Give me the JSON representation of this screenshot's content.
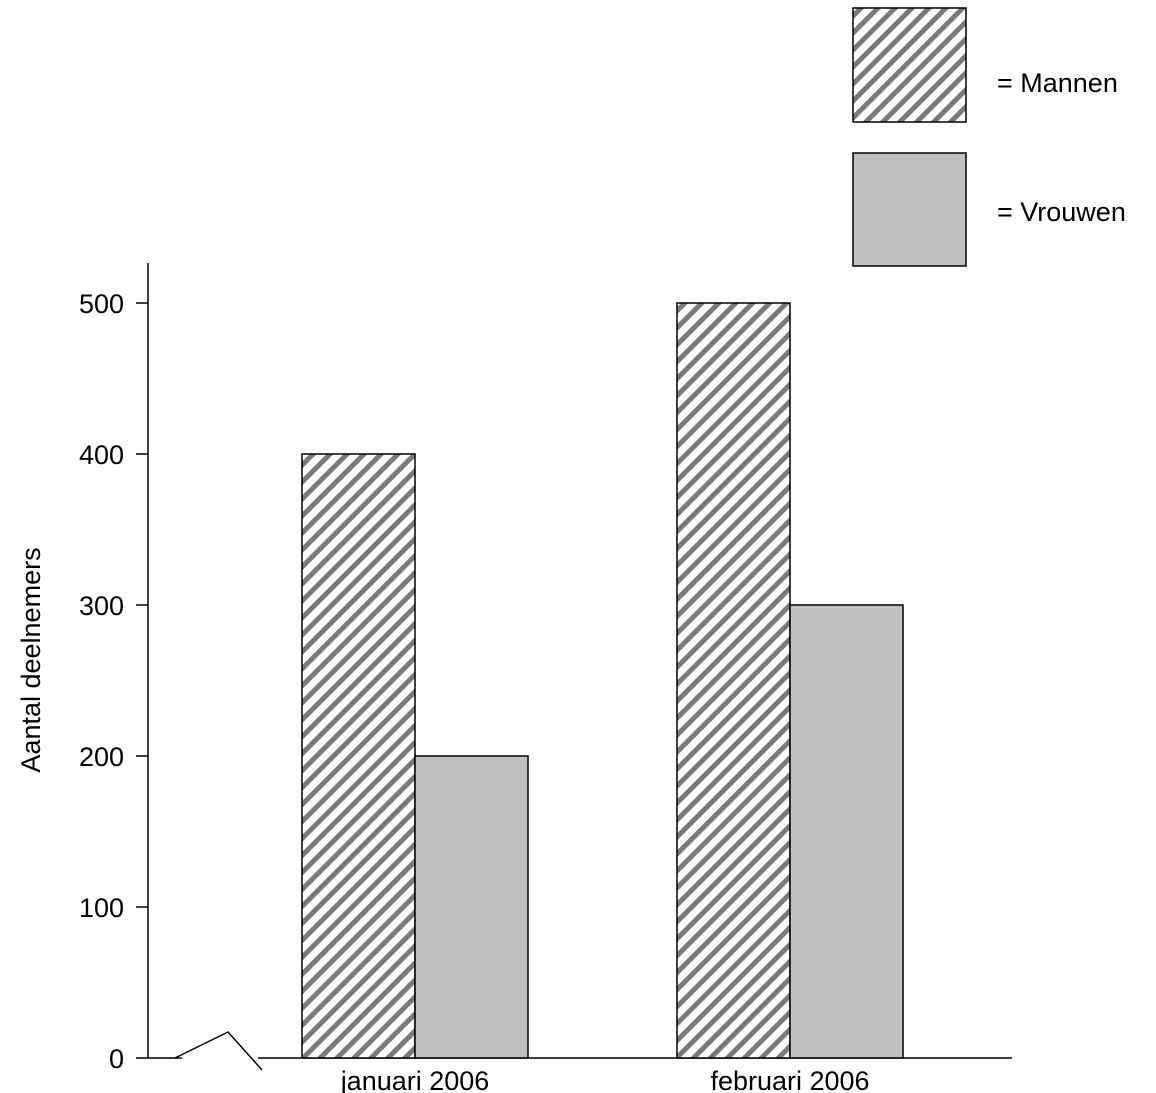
{
  "chart_data": {
    "type": "bar",
    "title": "",
    "xlabel": "",
    "ylabel": "Aantal deelnemers",
    "categories": [
      "januari 2006",
      "februari 2006"
    ],
    "series": [
      {
        "name": "Mannen",
        "values": [
          400,
          500
        ],
        "fill": "hatched"
      },
      {
        "name": "Vrouwen",
        "values": [
          200,
          300
        ],
        "fill": "#c0c0c0"
      }
    ],
    "ylim": [
      0,
      500
    ],
    "yticks": [
      0,
      100,
      200,
      300,
      400,
      500
    ],
    "y_axis_break": true,
    "grid": false,
    "legend": {
      "placement": "top-right",
      "entries": [
        "= Mannen",
        "= Vrouwen"
      ]
    }
  }
}
